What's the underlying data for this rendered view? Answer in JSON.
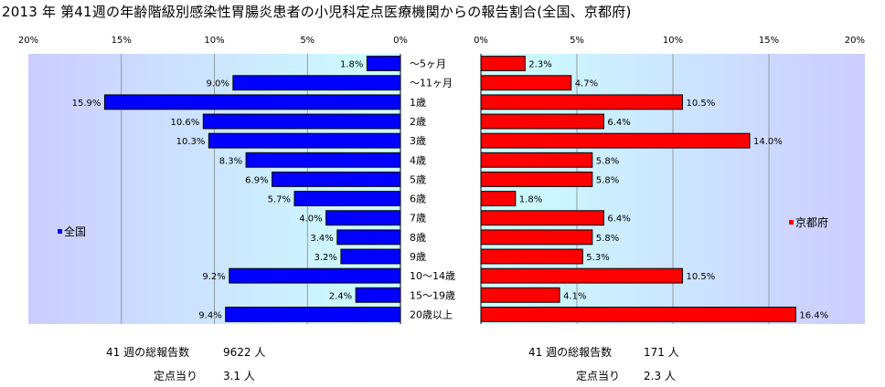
{
  "title": "2013 年 第41週の年齢階級別感染性胃腸炎患者の小児科定点医療機関からの報告割合(全国、京都府)",
  "colors": {
    "national": "#0000ff",
    "kyoto": "#ff0000",
    "bar_stroke": "#000000",
    "grid": "#888888"
  },
  "chart_data": [
    {
      "type": "bar",
      "orientation": "horizontal",
      "direction": "right-to-left",
      "series_name": "全国",
      "legend_position": "left",
      "xlim": [
        0,
        20
      ],
      "ticks": [
        "0%",
        "5%",
        "10%",
        "15%",
        "20%"
      ],
      "categories": [
        "～5ヶ月",
        "～11ヶ月",
        "1歳",
        "2歳",
        "3歳",
        "4歳",
        "5歳",
        "6歳",
        "7歳",
        "8歳",
        "9歳",
        "10～14歳",
        "15～19歳",
        "20歳以上"
      ],
      "values": [
        1.8,
        9.0,
        15.9,
        10.6,
        10.3,
        8.3,
        6.9,
        5.7,
        4.0,
        3.4,
        3.2,
        9.2,
        2.4,
        9.4
      ],
      "labels": [
        "1.8%",
        "9.0%",
        "15.9%",
        "10.6%",
        "10.3%",
        "8.3%",
        "6.9%",
        "5.7%",
        "4.0%",
        "3.4%",
        "3.2%",
        "9.2%",
        "2.4%",
        "9.4%"
      ],
      "grid": true
    },
    {
      "type": "bar",
      "orientation": "horizontal",
      "direction": "left-to-right",
      "series_name": "京都府",
      "legend_position": "right",
      "xlim": [
        0,
        20
      ],
      "ticks": [
        "0%",
        "5%",
        "10%",
        "15%",
        "20%"
      ],
      "categories": [
        "～5ヶ月",
        "～11ヶ月",
        "1歳",
        "2歳",
        "3歳",
        "4歳",
        "5歳",
        "6歳",
        "7歳",
        "8歳",
        "9歳",
        "10～14歳",
        "15～19歳",
        "20歳以上"
      ],
      "values": [
        2.3,
        4.7,
        10.5,
        6.4,
        14.0,
        5.8,
        5.8,
        1.8,
        6.4,
        5.8,
        5.3,
        10.5,
        4.1,
        16.4
      ],
      "labels": [
        "2.3%",
        "4.7%",
        "10.5%",
        "6.4%",
        "14.0%",
        "5.8%",
        "5.8%",
        "1.8%",
        "6.4%",
        "5.8%",
        "5.3%",
        "10.5%",
        "4.1%",
        "16.4%"
      ],
      "grid": true
    }
  ],
  "footer": {
    "national": {
      "total_label": "41 週の総報告数",
      "total_value": "9622 人",
      "per_label": "定点当り",
      "per_value": "3.1 人"
    },
    "kyoto": {
      "total_label": "41 週の総報告数",
      "total_value": "171 人",
      "per_label": "定点当り",
      "per_value": "2.3 人"
    }
  }
}
